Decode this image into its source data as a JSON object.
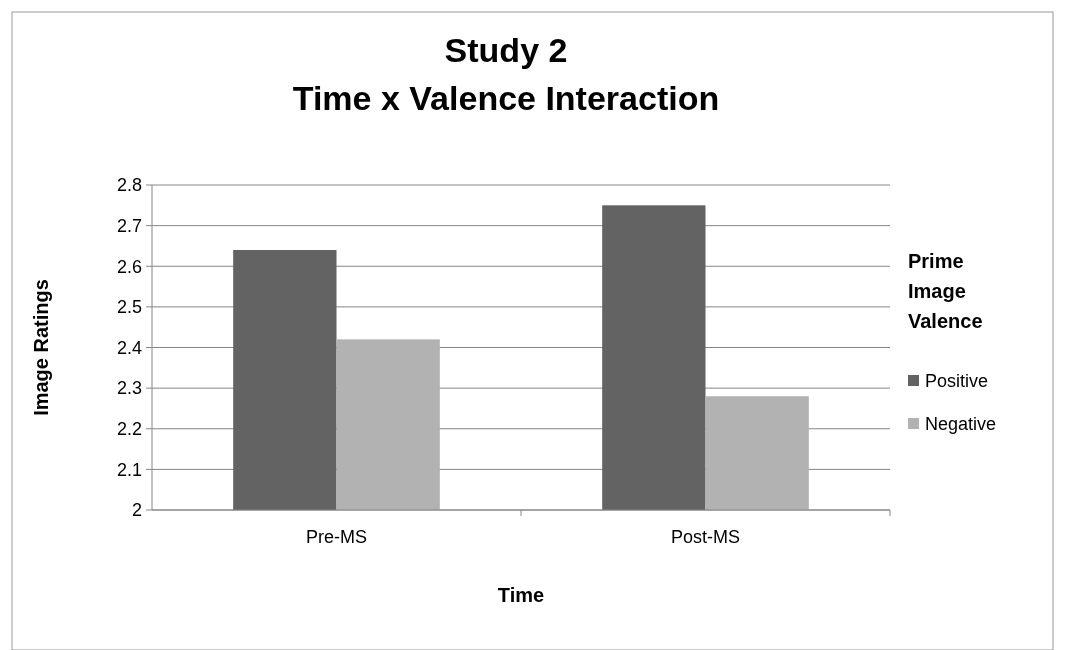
{
  "chart_data": {
    "type": "bar",
    "title": "Study 2\nTime x Valence Interaction",
    "xlabel": "Time",
    "ylabel": "Image Ratings",
    "legend_title": "Prime Image Valence",
    "categories": [
      "Pre-MS",
      "Post-MS"
    ],
    "series": [
      {
        "name": "Positive",
        "color": "#636363",
        "values": [
          2.64,
          2.75
        ]
      },
      {
        "name": "Negative",
        "color": "#b2b2b2",
        "values": [
          2.42,
          2.28
        ]
      }
    ],
    "ylim": [
      2,
      2.8
    ],
    "yticks": [
      2,
      2.1,
      2.2,
      2.3,
      2.4,
      2.5,
      2.6,
      2.7,
      2.8
    ],
    "grid": "y",
    "legend": "right"
  }
}
